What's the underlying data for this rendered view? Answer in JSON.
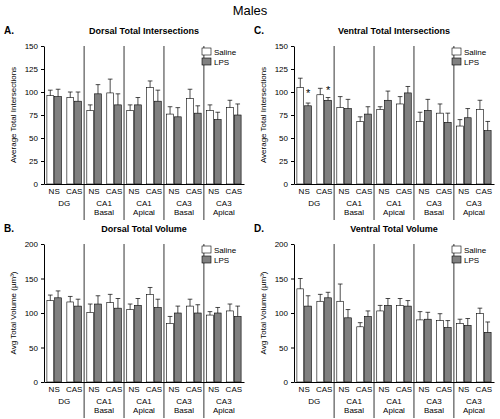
{
  "title": "Males",
  "chart_data": [
    {
      "type": "bar",
      "panel_label": "A.",
      "title": "Dorsal Total Intersections",
      "y_label": "Average Total Intersections",
      "categories": [
        "NS",
        "CAS",
        "NS",
        "CAS",
        "NS",
        "CAS",
        "NS",
        "CAS",
        "NS",
        "CAS"
      ],
      "groups": [
        "DG",
        "CA1 Basal",
        "CA1 Apical",
        "CA3 Basal",
        "CA3 Apical"
      ],
      "series": [
        {
          "name": "Saline",
          "color": "#ffffff",
          "values": [
            96,
            94,
            80,
            99,
            80,
            105,
            76,
            93,
            80,
            83
          ],
          "errors": [
            6,
            6,
            6,
            15,
            6,
            7,
            8,
            10,
            6,
            8
          ]
        },
        {
          "name": "LPS",
          "color": "#808080",
          "values": [
            95,
            90,
            98,
            86,
            86,
            90,
            73,
            77,
            70,
            75
          ],
          "errors": [
            8,
            10,
            10,
            12,
            8,
            12,
            10,
            8,
            8,
            12
          ]
        }
      ],
      "ylim": [
        0,
        150
      ],
      "yticks": [
        0,
        25,
        50,
        75,
        100,
        125,
        150
      ],
      "grid": false,
      "legend": "upper right"
    },
    {
      "type": "bar",
      "panel_label": "B.",
      "title": "Dorsal Total Volume",
      "y_label": "Avg Total Volume (µm³)",
      "categories": [
        "NS",
        "CAS",
        "NS",
        "CAS",
        "NS",
        "CAS",
        "NS",
        "CAS",
        "NS",
        "CAS"
      ],
      "groups": [
        "DG",
        "CA1 Basal",
        "CA1 Apical",
        "CA3 Basal",
        "CA3 Apical"
      ],
      "series": [
        {
          "name": "Saline",
          "color": "#ffffff",
          "values": [
            118,
            116,
            101,
            115,
            105,
            127,
            85,
            110,
            97,
            103
          ],
          "errors": [
            8,
            8,
            12,
            12,
            8,
            10,
            10,
            10,
            5,
            10
          ]
        },
        {
          "name": "LPS",
          "color": "#808080",
          "values": [
            122,
            110,
            113,
            107,
            111,
            108,
            100,
            100,
            100,
            95
          ],
          "errors": [
            10,
            10,
            12,
            14,
            10,
            12,
            10,
            12,
            8,
            15
          ]
        }
      ],
      "ylim": [
        0,
        200
      ],
      "yticks": [
        0,
        50,
        100,
        150,
        200
      ],
      "grid": false,
      "legend": "upper right"
    },
    {
      "type": "bar",
      "panel_label": "C.",
      "title": "Ventral Total Intersections",
      "y_label": "Average Total Intersections",
      "categories": [
        "NS",
        "CAS",
        "NS",
        "CAS",
        "NS",
        "CAS",
        "NS",
        "CAS",
        "NS",
        "CAS"
      ],
      "groups": [
        "DG",
        "CA1 Basal",
        "CA1 Apical",
        "CA3 Basal",
        "CA3 Apical"
      ],
      "series": [
        {
          "name": "Saline",
          "color": "#ffffff",
          "values": [
            105,
            97,
            83,
            68,
            81,
            87,
            68,
            77,
            63,
            81
          ],
          "errors": [
            10,
            7,
            12,
            5,
            3,
            8,
            10,
            10,
            7,
            10
          ]
        },
        {
          "name": "LPS",
          "color": "#808080",
          "values": [
            85,
            91,
            82,
            76,
            91,
            99,
            80,
            67,
            72,
            58
          ],
          "errors": [
            3,
            3,
            10,
            8,
            10,
            7,
            12,
            10,
            10,
            10
          ]
        }
      ],
      "annotations": [
        {
          "text": "*",
          "category": 0,
          "series": 1,
          "y": 100
        },
        {
          "text": "*",
          "category": 1,
          "series": 1,
          "y": 103
        }
      ],
      "ylim": [
        0,
        150
      ],
      "yticks": [
        0,
        25,
        50,
        75,
        100,
        125,
        150
      ],
      "grid": false,
      "legend": "upper right"
    },
    {
      "type": "bar",
      "panel_label": "D.",
      "title": "Ventral Total Volume",
      "y_label": "Avg Total Volume (µm³)",
      "categories": [
        "NS",
        "CAS",
        "NS",
        "CAS",
        "NS",
        "CAS",
        "NS",
        "CAS",
        "NS",
        "CAS"
      ],
      "groups": [
        "DG",
        "CA1 Basal",
        "CA1 Apical",
        "CA3 Basal",
        "CA3 Apical"
      ],
      "series": [
        {
          "name": "Saline",
          "color": "#ffffff",
          "values": [
            135,
            117,
            117,
            80,
            103,
            111,
            90,
            89,
            85,
            99
          ],
          "errors": [
            15,
            10,
            25,
            6,
            8,
            10,
            12,
            10,
            6,
            8
          ]
        },
        {
          "name": "LPS",
          "color": "#808080",
          "values": [
            110,
            122,
            93,
            95,
            111,
            110,
            91,
            79,
            82,
            72
          ],
          "errors": [
            15,
            8,
            12,
            8,
            10,
            8,
            10,
            10,
            10,
            15
          ]
        }
      ],
      "ylim": [
        0,
        200
      ],
      "yticks": [
        0,
        50,
        100,
        150,
        200
      ],
      "grid": false,
      "legend": "upper right"
    }
  ]
}
